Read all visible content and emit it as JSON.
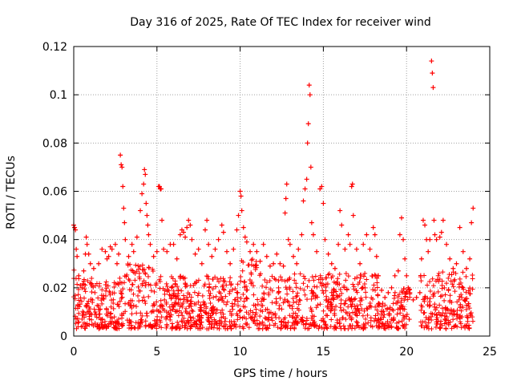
{
  "chart_data": {
    "type": "scatter",
    "title": "Day 316 of 2025, Rate Of TEC Index for receiver wind",
    "xlabel": "GPS time / hours",
    "ylabel": "ROTI / TECUs",
    "xlim": [
      0,
      25
    ],
    "ylim": [
      0,
      0.12
    ],
    "xticks": [
      0,
      5,
      10,
      15,
      20,
      25
    ],
    "xtick_labels": [
      "0",
      "5",
      "10",
      "15",
      "20",
      "25"
    ],
    "yticks": [
      0,
      0.02,
      0.04,
      0.06,
      0.08,
      0.1,
      0.12
    ],
    "ytick_labels": [
      "0",
      "0.02",
      "0.04",
      "0.06",
      "0.08",
      "0.1",
      "0.12"
    ],
    "grid": true,
    "marker": "plus",
    "color": "#ff0000",
    "series": [
      {
        "name": "ROTI",
        "points": [
          [
            0.0,
            0.046
          ],
          [
            0.05,
            0.045
          ],
          [
            0.1,
            0.044
          ],
          [
            0.15,
            0.036
          ],
          [
            0.2,
            0.033
          ],
          [
            0.3,
            0.025
          ],
          [
            0.4,
            0.021
          ],
          [
            0.5,
            0.02
          ],
          [
            0.6,
            0.027
          ],
          [
            0.7,
            0.034
          ],
          [
            0.75,
            0.041
          ],
          [
            0.8,
            0.038
          ],
          [
            0.9,
            0.034
          ],
          [
            1.0,
            0.03
          ],
          [
            1.2,
            0.028
          ],
          [
            1.5,
            0.03
          ],
          [
            1.7,
            0.036
          ],
          [
            1.9,
            0.035
          ],
          [
            2.0,
            0.032
          ],
          [
            2.1,
            0.033
          ],
          [
            2.2,
            0.037
          ],
          [
            2.3,
            0.036
          ],
          [
            2.5,
            0.038
          ],
          [
            2.6,
            0.03
          ],
          [
            2.7,
            0.034
          ],
          [
            2.8,
            0.075
          ],
          [
            2.85,
            0.071
          ],
          [
            2.9,
            0.07
          ],
          [
            2.95,
            0.062
          ],
          [
            3.0,
            0.053
          ],
          [
            3.05,
            0.047
          ],
          [
            3.1,
            0.04
          ],
          [
            3.3,
            0.033
          ],
          [
            3.5,
            0.038
          ],
          [
            3.6,
            0.035
          ],
          [
            3.8,
            0.041
          ],
          [
            4.0,
            0.052
          ],
          [
            4.1,
            0.059
          ],
          [
            4.2,
            0.063
          ],
          [
            4.25,
            0.069
          ],
          [
            4.3,
            0.067
          ],
          [
            4.35,
            0.055
          ],
          [
            4.4,
            0.05
          ],
          [
            4.45,
            0.046
          ],
          [
            4.5,
            0.042
          ],
          [
            4.6,
            0.038
          ],
          [
            4.8,
            0.033
          ],
          [
            5.0,
            0.035
          ],
          [
            5.1,
            0.062
          ],
          [
            5.15,
            0.062
          ],
          [
            5.2,
            0.061
          ],
          [
            5.25,
            0.061
          ],
          [
            5.3,
            0.048
          ],
          [
            5.4,
            0.036
          ],
          [
            5.6,
            0.035
          ],
          [
            5.8,
            0.038
          ],
          [
            6.0,
            0.038
          ],
          [
            6.2,
            0.032
          ],
          [
            6.4,
            0.042
          ],
          [
            6.5,
            0.044
          ],
          [
            6.6,
            0.043
          ],
          [
            6.7,
            0.041
          ],
          [
            6.8,
            0.045
          ],
          [
            6.9,
            0.048
          ],
          [
            7.0,
            0.046
          ],
          [
            7.1,
            0.04
          ],
          [
            7.3,
            0.034
          ],
          [
            7.5,
            0.036
          ],
          [
            7.7,
            0.03
          ],
          [
            7.9,
            0.044
          ],
          [
            8.0,
            0.048
          ],
          [
            8.1,
            0.038
          ],
          [
            8.3,
            0.033
          ],
          [
            8.5,
            0.036
          ],
          [
            8.7,
            0.04
          ],
          [
            8.9,
            0.046
          ],
          [
            9.0,
            0.043
          ],
          [
            9.2,
            0.035
          ],
          [
            9.4,
            0.03
          ],
          [
            9.6,
            0.036
          ],
          [
            9.8,
            0.044
          ],
          [
            9.9,
            0.05
          ],
          [
            10.0,
            0.06
          ],
          [
            10.05,
            0.058
          ],
          [
            10.1,
            0.052
          ],
          [
            10.2,
            0.045
          ],
          [
            10.3,
            0.041
          ],
          [
            10.4,
            0.039
          ],
          [
            10.6,
            0.035
          ],
          [
            10.8,
            0.038
          ],
          [
            11.0,
            0.035
          ],
          [
            11.2,
            0.031
          ],
          [
            11.4,
            0.038
          ],
          [
            11.6,
            0.033
          ],
          [
            11.8,
            0.029
          ],
          [
            12.0,
            0.03
          ],
          [
            12.2,
            0.034
          ],
          [
            12.4,
            0.03
          ],
          [
            12.6,
            0.029
          ],
          [
            12.7,
            0.051
          ],
          [
            12.75,
            0.057
          ],
          [
            12.8,
            0.063
          ],
          [
            12.9,
            0.04
          ],
          [
            13.0,
            0.038
          ],
          [
            13.2,
            0.033
          ],
          [
            13.4,
            0.03
          ],
          [
            13.5,
            0.036
          ],
          [
            13.7,
            0.042
          ],
          [
            13.8,
            0.056
          ],
          [
            13.9,
            0.061
          ],
          [
            14.0,
            0.065
          ],
          [
            14.05,
            0.08
          ],
          [
            14.1,
            0.088
          ],
          [
            14.15,
            0.104
          ],
          [
            14.2,
            0.1
          ],
          [
            14.25,
            0.07
          ],
          [
            14.3,
            0.047
          ],
          [
            14.4,
            0.042
          ],
          [
            14.6,
            0.035
          ],
          [
            14.8,
            0.061
          ],
          [
            14.9,
            0.062
          ],
          [
            15.0,
            0.055
          ],
          [
            15.1,
            0.04
          ],
          [
            15.3,
            0.034
          ],
          [
            15.5,
            0.03
          ],
          [
            15.7,
            0.028
          ],
          [
            15.9,
            0.038
          ],
          [
            16.0,
            0.052
          ],
          [
            16.1,
            0.046
          ],
          [
            16.3,
            0.036
          ],
          [
            16.5,
            0.042
          ],
          [
            16.6,
            0.038
          ],
          [
            16.7,
            0.062
          ],
          [
            16.75,
            0.063
          ],
          [
            16.8,
            0.05
          ],
          [
            17.0,
            0.036
          ],
          [
            17.2,
            0.03
          ],
          [
            17.4,
            0.038
          ],
          [
            17.6,
            0.042
          ],
          [
            17.8,
            0.036
          ],
          [
            18.0,
            0.045
          ],
          [
            18.1,
            0.042
          ],
          [
            18.2,
            0.033
          ],
          [
            18.3,
            0.025
          ],
          [
            18.5,
            0.019
          ],
          [
            18.7,
            0.016
          ],
          [
            18.9,
            0.018
          ],
          [
            19.1,
            0.02
          ],
          [
            19.3,
            0.025
          ],
          [
            19.5,
            0.027
          ],
          [
            19.6,
            0.042
          ],
          [
            19.7,
            0.049
          ],
          [
            19.8,
            0.04
          ],
          [
            19.9,
            0.032
          ],
          [
            20.0,
            0.025
          ],
          [
            20.1,
            0.02
          ],
          [
            20.2,
            0.018
          ],
          [
            20.4,
            0.015
          ],
          [
            20.6,
            0.016
          ],
          [
            20.8,
            0.018
          ],
          [
            20.9,
            0.032
          ],
          [
            21.0,
            0.048
          ],
          [
            21.1,
            0.046
          ],
          [
            21.2,
            0.04
          ],
          [
            21.3,
            0.035
          ],
          [
            21.4,
            0.04
          ],
          [
            21.5,
            0.114
          ],
          [
            21.55,
            0.109
          ],
          [
            21.6,
            0.103
          ],
          [
            21.65,
            0.048
          ],
          [
            21.7,
            0.042
          ],
          [
            21.8,
            0.04
          ],
          [
            22.0,
            0.041
          ],
          [
            22.1,
            0.043
          ],
          [
            22.2,
            0.048
          ],
          [
            22.4,
            0.038
          ],
          [
            22.6,
            0.032
          ],
          [
            22.8,
            0.028
          ],
          [
            23.0,
            0.03
          ],
          [
            23.2,
            0.045
          ],
          [
            23.4,
            0.035
          ],
          [
            23.6,
            0.028
          ],
          [
            23.8,
            0.032
          ],
          [
            23.9,
            0.047
          ],
          [
            24.0,
            0.053
          ]
        ]
      }
    ]
  }
}
